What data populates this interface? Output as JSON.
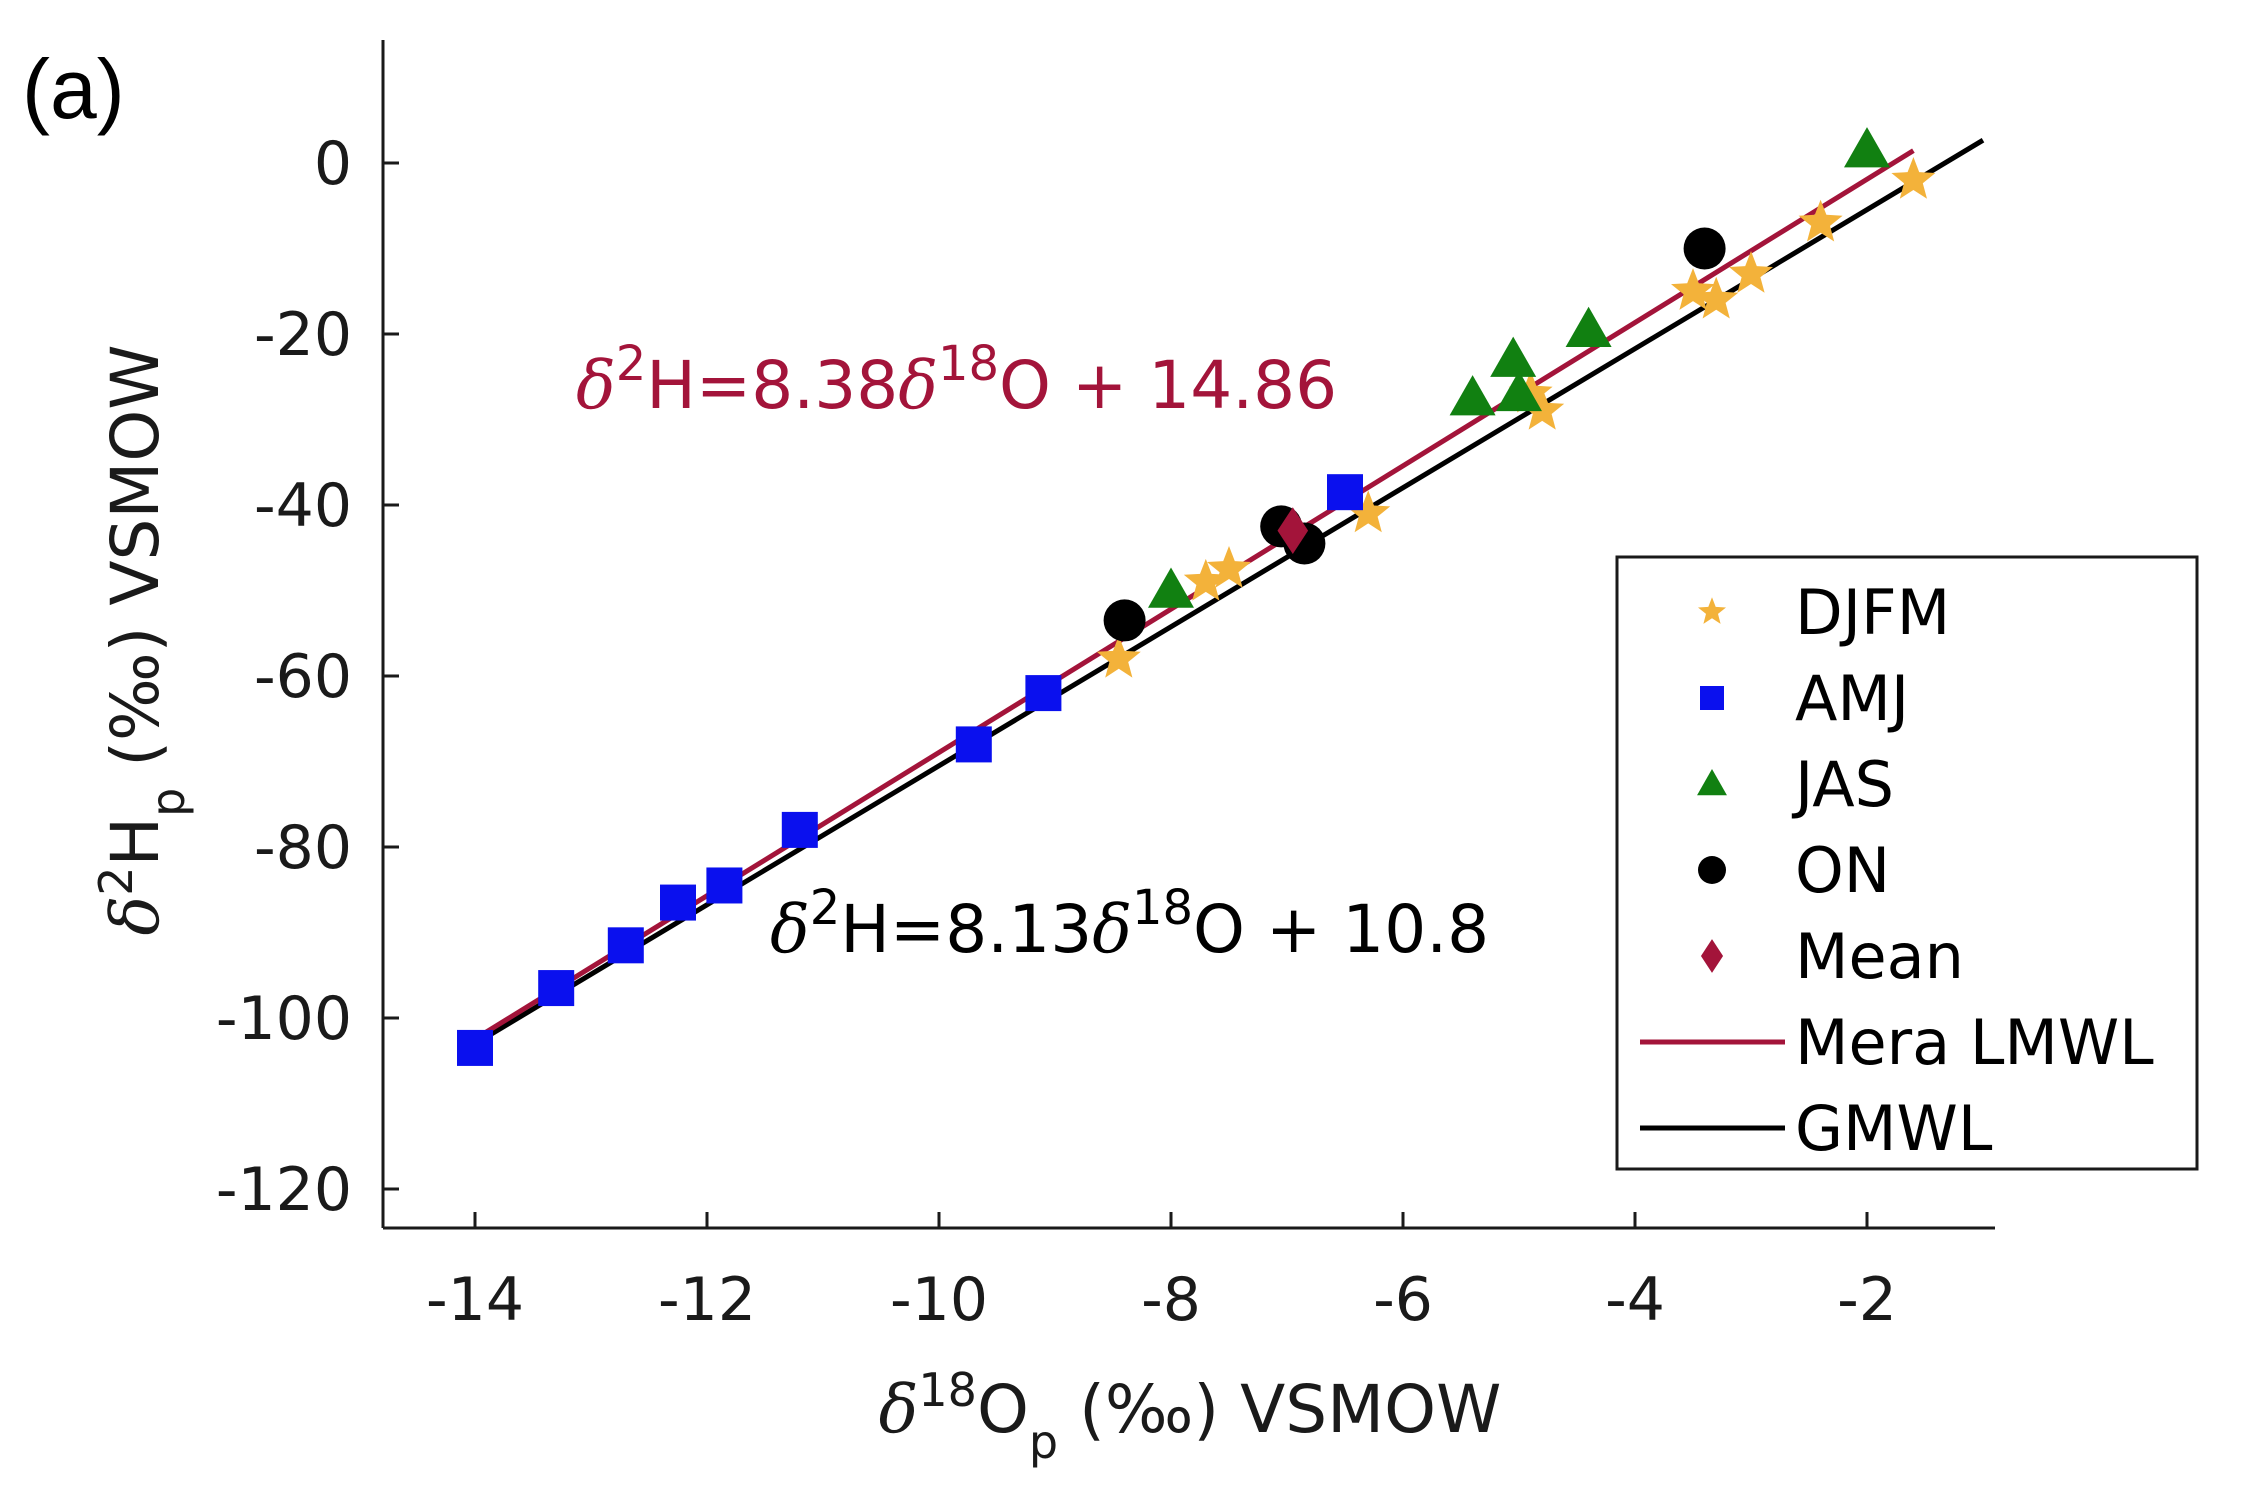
{
  "panel_label": "(a)",
  "colors": {
    "djfm": "#f3b23a",
    "amj": "#0a10ee",
    "jas": "#118011",
    "on": "#000000",
    "mean": "#a3143a",
    "lmwl": "#a3143a",
    "gmwl": "#000000",
    "axis": "#1a1a1a"
  },
  "chart_data": {
    "type": "scatter",
    "title": "",
    "xlabel": "δ18Op (‰) VSMOW",
    "ylabel": "δ2Hp (‰) VSMOW",
    "xlim": [
      -15,
      -1
    ],
    "ylim": [
      -125,
      14
    ],
    "xticks": [
      -14,
      -12,
      -10,
      -8,
      -6,
      -4,
      -2
    ],
    "yticks": [
      0,
      -20,
      -40,
      -60,
      -80,
      -100,
      -120
    ],
    "legend_position": "bottom-right",
    "series": [
      {
        "name": "DJFM",
        "marker": "star",
        "color": "#f3b23a",
        "x": [
          -8.45,
          -7.7,
          -7.5,
          -6.3,
          -4.9,
          -4.8,
          -3.5,
          -3.3,
          -3.0,
          -2.4,
          -1.6
        ],
        "y": [
          -58,
          -49,
          -47.5,
          -41,
          -27,
          -29,
          -15,
          -16,
          -13,
          -7,
          -2
        ]
      },
      {
        "name": "AMJ",
        "marker": "square",
        "color": "#0a10ee",
        "x": [
          -14.0,
          -13.3,
          -12.7,
          -12.25,
          -11.85,
          -11.2,
          -9.7,
          -9.1,
          -6.5
        ],
        "y": [
          -103.5,
          -96.5,
          -91.5,
          -86.5,
          -84.5,
          -78,
          -68,
          -62,
          -38.5
        ]
      },
      {
        "name": "JAS",
        "marker": "triangle",
        "color": "#118011",
        "x": [
          -8.0,
          -5.4,
          -5.05,
          -5.0,
          -4.4,
          -2.0
        ],
        "y": [
          -50,
          -27.5,
          -23,
          -27,
          -19.5,
          1.5
        ]
      },
      {
        "name": "ON",
        "marker": "circle",
        "color": "#000000",
        "x": [
          -8.4,
          -7.05,
          -6.85,
          -3.4
        ],
        "y": [
          -53.5,
          -42.5,
          -44.5,
          -10
        ]
      },
      {
        "name": "Mean",
        "marker": "diamond",
        "color": "#a3143a",
        "x": [
          -6.95
        ],
        "y": [
          -43
        ]
      }
    ],
    "lines": [
      {
        "name": "Mera LMWL",
        "color": "#a3143a",
        "slope": 8.38,
        "intercept": 14.86,
        "x_range": [
          -14,
          -1.6
        ]
      },
      {
        "name": "GMWL",
        "color": "#000000",
        "slope": 8.13,
        "intercept": 10.8,
        "x_range": [
          -14,
          -1.0
        ]
      }
    ],
    "annotations": [
      {
        "text": "δ2H=8.38δ18O + 14.86",
        "color": "#a3143a"
      },
      {
        "text": "δ2H=8.13δ18O + 10.8",
        "color": "#000000"
      }
    ]
  },
  "axis_text": {
    "delta": "δ",
    "x_sup": "18",
    "x_main": "O",
    "x_sub": "p",
    "x_rest": " (‰) VSMOW",
    "y_sup": "2",
    "y_main": "H",
    "y_sub": "p",
    "y_rest": " (‰) VSMOW"
  },
  "equations": {
    "lmwl": {
      "delta": "δ",
      "sup1": "2",
      "mid": "H=8.38",
      "delta2": "δ",
      "sup2": "18",
      "end": "O + 14.86"
    },
    "gmwl": {
      "delta": "δ",
      "sup1": "2",
      "mid": "H=8.13",
      "delta2": "δ",
      "sup2": "18",
      "end": "O + 10.8"
    }
  },
  "legend": [
    {
      "label": "DJFM",
      "marker": "star"
    },
    {
      "label": "AMJ",
      "marker": "square"
    },
    {
      "label": "JAS",
      "marker": "triangle"
    },
    {
      "label": "ON",
      "marker": "circle"
    },
    {
      "label": "Mean",
      "marker": "diamond"
    },
    {
      "label": "Mera LMWL",
      "marker": "line-lmwl"
    },
    {
      "label": "GMWL",
      "marker": "line-gmwl"
    }
  ]
}
